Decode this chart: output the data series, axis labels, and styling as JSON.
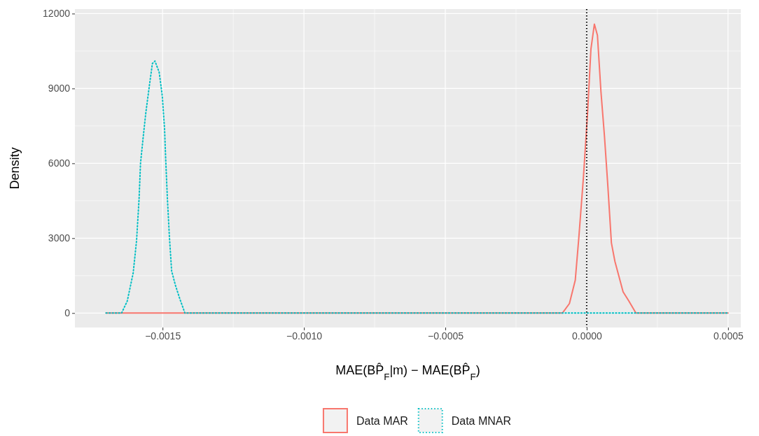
{
  "chart_data": {
    "type": "line",
    "xlabel": "MAE(BP̂$_{F}$|m) − MAE(BP̂$_{F}$)",
    "ylabel": "Density",
    "xlim": [
      -0.00181,
      0.000545
    ],
    "ylim": [
      -580,
      12180
    ],
    "xticks": [
      {
        "value": -0.0015,
        "label": "−0.0015"
      },
      {
        "value": -0.001,
        "label": "−0.0010"
      },
      {
        "value": -0.0005,
        "label": "−0.0005"
      },
      {
        "value": 0,
        "label": "0.0000"
      },
      {
        "value": 0.0005,
        "label": "0.0005"
      }
    ],
    "yticks": [
      0,
      3000,
      6000,
      9000,
      12000
    ],
    "grid": true,
    "legend": "bottom",
    "ref_lines": [
      {
        "axis": "x",
        "value": 0,
        "color": "#000000",
        "line_style": "dotted"
      }
    ],
    "series": [
      {
        "name": "Data MAR",
        "color": "#f8766d",
        "line_style": "solid",
        "x": [
          -0.0017,
          -8.59e-05,
          -6.11e-05,
          -4.04e-05,
          -2.8e-05,
          -1.16e-05,
          3.3e-06,
          1.49e-05,
          2.72e-05,
          3.8e-05,
          5.03e-05,
          6.27e-05,
          7.5e-05,
          8.74e-05,
          9.98e-05,
          0.0001287,
          0.0001493,
          0.000174,
          0.0005
        ],
        "values": [
          0,
          0,
          380,
          1320,
          3000,
          5430,
          8050,
          10570,
          11580,
          11130,
          8890,
          7110,
          5060,
          2810,
          2070,
          850,
          480,
          0,
          0
        ]
      },
      {
        "name": "Data MNAR",
        "color": "#00bfc4",
        "line_style": "dotted",
        "x": [
          -0.0017,
          -0.001645,
          -0.001625,
          -0.001604,
          -0.001592,
          -0.001583,
          -0.001578,
          -0.001569,
          -0.001559,
          -0.001546,
          -0.001536,
          -0.001527,
          -0.001512,
          -0.001501,
          -0.001493,
          -0.001489,
          -0.001483,
          -0.001476,
          -0.001468,
          -0.001455,
          -0.001439,
          -0.001421,
          0.0005
        ],
        "values": [
          0,
          0,
          477,
          1600,
          2900,
          4600,
          6000,
          7000,
          8050,
          9170,
          10000,
          10100,
          9650,
          8700,
          7400,
          6180,
          4600,
          3090,
          1690,
          1130,
          570,
          0,
          0
        ]
      }
    ]
  }
}
